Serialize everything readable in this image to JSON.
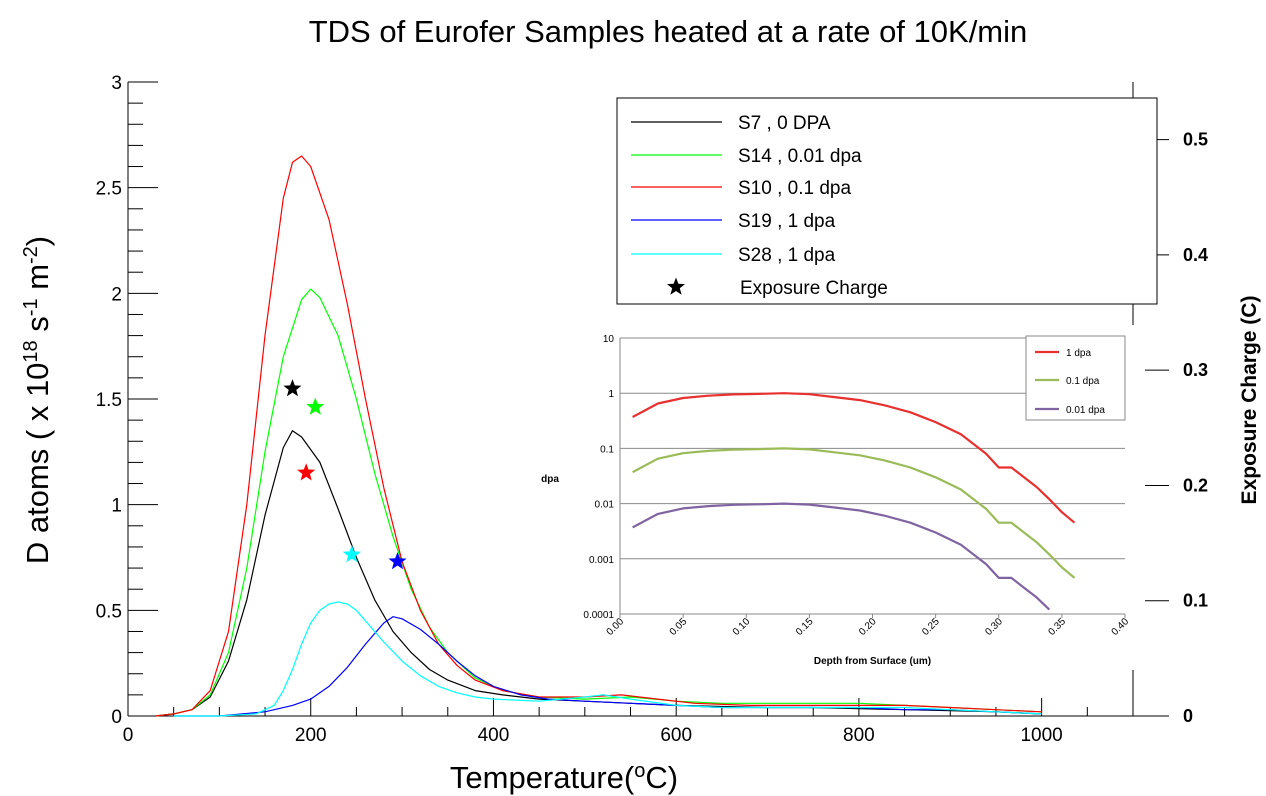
{
  "chart_data": [
    {
      "type": "line",
      "title": "TDS of Eurofer Samples heated at a rate of 10K/min",
      "xlabel": "Temperature(°C)",
      "xlabel_parts": [
        "Temperature(",
        "o",
        "C)"
      ],
      "ylabel": "D atoms ( x 10^18 s^-1 m^-2)",
      "ylabel_parts": [
        "D atoms ( x 10",
        "18",
        " s",
        "-1",
        " m",
        "-2",
        ")"
      ],
      "y2label": "Exposure Charge (C)",
      "xlim": [
        0,
        1100
      ],
      "ylim": [
        0,
        3
      ],
      "y2lim": [
        0,
        0.55
      ],
      "xticks": [
        "0",
        "200",
        "400",
        "600",
        "800",
        "1000"
      ],
      "yticks": [
        "0",
        "0.5",
        "1",
        "1.5",
        "2",
        "2.5",
        "3"
      ],
      "y2ticks": [
        "0",
        "0.1",
        "0.2",
        "0.3",
        "0.4",
        "0.5"
      ],
      "grid": false,
      "legend_position": "top-right",
      "series": [
        {
          "name": "S7 , 0 DPA",
          "color": "#000000",
          "x": [
            30,
            50,
            70,
            90,
            110,
            130,
            150,
            170,
            180,
            190,
            210,
            230,
            250,
            270,
            290,
            310,
            330,
            350,
            380,
            410,
            450,
            500,
            550,
            600,
            650,
            700,
            750,
            800,
            850,
            900,
            950,
            1000
          ],
          "y": [
            0,
            0.01,
            0.03,
            0.09,
            0.26,
            0.55,
            0.95,
            1.27,
            1.35,
            1.32,
            1.2,
            0.98,
            0.75,
            0.55,
            0.4,
            0.3,
            0.22,
            0.17,
            0.12,
            0.1,
            0.08,
            0.07,
            0.06,
            0.05,
            0.045,
            0.04,
            0.04,
            0.035,
            0.03,
            0.025,
            0.02,
            0.01
          ]
        },
        {
          "name": "S14 , 0.01 dpa",
          "color": "#00ff00",
          "x": [
            30,
            50,
            70,
            90,
            110,
            130,
            150,
            170,
            190,
            200,
            210,
            230,
            250,
            270,
            290,
            310,
            330,
            350,
            380,
            410,
            450,
            500,
            550,
            600,
            650,
            700,
            750,
            800,
            850,
            900,
            950,
            1000
          ],
          "y": [
            0,
            0.01,
            0.03,
            0.1,
            0.3,
            0.7,
            1.25,
            1.7,
            1.97,
            2.02,
            1.98,
            1.8,
            1.5,
            1.15,
            0.85,
            0.6,
            0.42,
            0.3,
            0.18,
            0.12,
            0.09,
            0.08,
            0.09,
            0.07,
            0.06,
            0.06,
            0.06,
            0.06,
            0.05,
            0.04,
            0.03,
            0.02
          ]
        },
        {
          "name": "S10 , 0.1 dpa",
          "color": "#ff0000",
          "x": [
            30,
            50,
            70,
            90,
            110,
            130,
            150,
            170,
            180,
            190,
            200,
            220,
            240,
            260,
            280,
            300,
            320,
            340,
            360,
            380,
            410,
            450,
            500,
            540,
            580,
            620,
            680,
            750,
            800,
            850,
            900,
            950,
            1000
          ],
          "y": [
            0,
            0.01,
            0.03,
            0.12,
            0.4,
            1.0,
            1.8,
            2.45,
            2.62,
            2.65,
            2.6,
            2.35,
            1.95,
            1.5,
            1.08,
            0.73,
            0.5,
            0.34,
            0.24,
            0.17,
            0.12,
            0.09,
            0.09,
            0.1,
            0.08,
            0.06,
            0.05,
            0.05,
            0.05,
            0.05,
            0.04,
            0.03,
            0.02
          ]
        },
        {
          "name": "S19 , 1 dpa",
          "color": "#0000ff",
          "x": [
            50,
            100,
            150,
            180,
            200,
            220,
            240,
            260,
            280,
            290,
            300,
            320,
            340,
            360,
            380,
            400,
            430,
            460,
            500,
            550,
            600,
            650,
            700,
            750,
            800,
            850,
            900,
            950,
            1000
          ],
          "y": [
            0,
            0.0,
            0.02,
            0.05,
            0.08,
            0.14,
            0.23,
            0.34,
            0.44,
            0.47,
            0.46,
            0.41,
            0.34,
            0.26,
            0.19,
            0.14,
            0.1,
            0.08,
            0.07,
            0.06,
            0.05,
            0.04,
            0.04,
            0.04,
            0.04,
            0.03,
            0.03,
            0.02,
            0.01
          ]
        },
        {
          "name": "S28 , 1 dpa",
          "color": "#00ffff",
          "x": [
            50,
            100,
            140,
            160,
            170,
            180,
            190,
            200,
            210,
            220,
            230,
            240,
            250,
            260,
            280,
            300,
            320,
            340,
            360,
            380,
            400,
            450,
            500,
            520,
            550,
            600,
            650,
            700,
            750,
            800,
            850,
            900,
            950,
            1000
          ],
          "y": [
            0,
            0.0,
            0.01,
            0.05,
            0.12,
            0.22,
            0.34,
            0.44,
            0.5,
            0.53,
            0.54,
            0.53,
            0.5,
            0.45,
            0.35,
            0.26,
            0.19,
            0.14,
            0.11,
            0.09,
            0.08,
            0.07,
            0.09,
            0.1,
            0.08,
            0.05,
            0.04,
            0.04,
            0.04,
            0.04,
            0.04,
            0.03,
            0.02,
            0.01
          ]
        }
      ],
      "exposure_charge": {
        "name": "Exposure Charge",
        "marker": "star",
        "points": [
          {
            "x": 180,
            "y2": 0.284,
            "color": "#000000"
          },
          {
            "x": 205,
            "y2": 0.268,
            "color": "#00ff00"
          },
          {
            "x": 195,
            "y2": 0.211,
            "color": "#ff0000"
          },
          {
            "x": 245,
            "y2": 0.14,
            "color": "#00ffff"
          },
          {
            "x": 295,
            "y2": 0.134,
            "color": "#0000ff"
          }
        ]
      }
    },
    {
      "type": "line",
      "title": "",
      "xlabel": "Depth from Surface (um)",
      "ylabel": "dpa",
      "yscale": "log",
      "xlim": [
        0.0,
        0.4
      ],
      "ylim": [
        0.0001,
        10
      ],
      "xticks": [
        "0.00",
        "0.05",
        "0.10",
        "0.15",
        "0.20",
        "0.25",
        "0.30",
        "0.35",
        "0.40"
      ],
      "yticks": [
        "0.0001",
        "0.001",
        "0.01",
        "0.1",
        "1",
        "10"
      ],
      "grid": true,
      "legend_position": "top-right",
      "series": [
        {
          "name": "1 dpa",
          "color": "#e8312f",
          "x": [
            0.01,
            0.03,
            0.05,
            0.07,
            0.09,
            0.11,
            0.13,
            0.15,
            0.17,
            0.19,
            0.21,
            0.23,
            0.25,
            0.27,
            0.29,
            0.3,
            0.31,
            0.32,
            0.33,
            0.34,
            0.35,
            0.36
          ],
          "y": [
            0.37,
            0.65,
            0.82,
            0.9,
            0.95,
            0.97,
            1.0,
            0.96,
            0.85,
            0.75,
            0.6,
            0.45,
            0.3,
            0.18,
            0.08,
            0.045,
            0.045,
            0.03,
            0.02,
            0.012,
            0.007,
            0.0045
          ]
        },
        {
          "name": "0.1 dpa",
          "color": "#9bbb59",
          "x": [
            0.01,
            0.03,
            0.05,
            0.07,
            0.09,
            0.11,
            0.13,
            0.15,
            0.17,
            0.19,
            0.21,
            0.23,
            0.25,
            0.27,
            0.29,
            0.3,
            0.31,
            0.32,
            0.33,
            0.34,
            0.35,
            0.36
          ],
          "y": [
            0.037,
            0.065,
            0.082,
            0.09,
            0.095,
            0.097,
            0.1,
            0.096,
            0.085,
            0.075,
            0.06,
            0.045,
            0.03,
            0.018,
            0.008,
            0.0045,
            0.0045,
            0.003,
            0.002,
            0.0012,
            0.0007,
            0.00045
          ]
        },
        {
          "name": "0.01 dpa",
          "color": "#8064a2",
          "x": [
            0.01,
            0.03,
            0.05,
            0.07,
            0.09,
            0.11,
            0.13,
            0.15,
            0.17,
            0.19,
            0.21,
            0.23,
            0.25,
            0.27,
            0.29,
            0.3,
            0.31,
            0.32,
            0.33,
            0.34
          ],
          "y": [
            0.0037,
            0.0065,
            0.0082,
            0.009,
            0.0095,
            0.0097,
            0.01,
            0.0096,
            0.0085,
            0.0075,
            0.006,
            0.0045,
            0.003,
            0.0018,
            0.0008,
            0.00045,
            0.00045,
            0.0003,
            0.0002,
            0.00012
          ]
        }
      ]
    }
  ]
}
